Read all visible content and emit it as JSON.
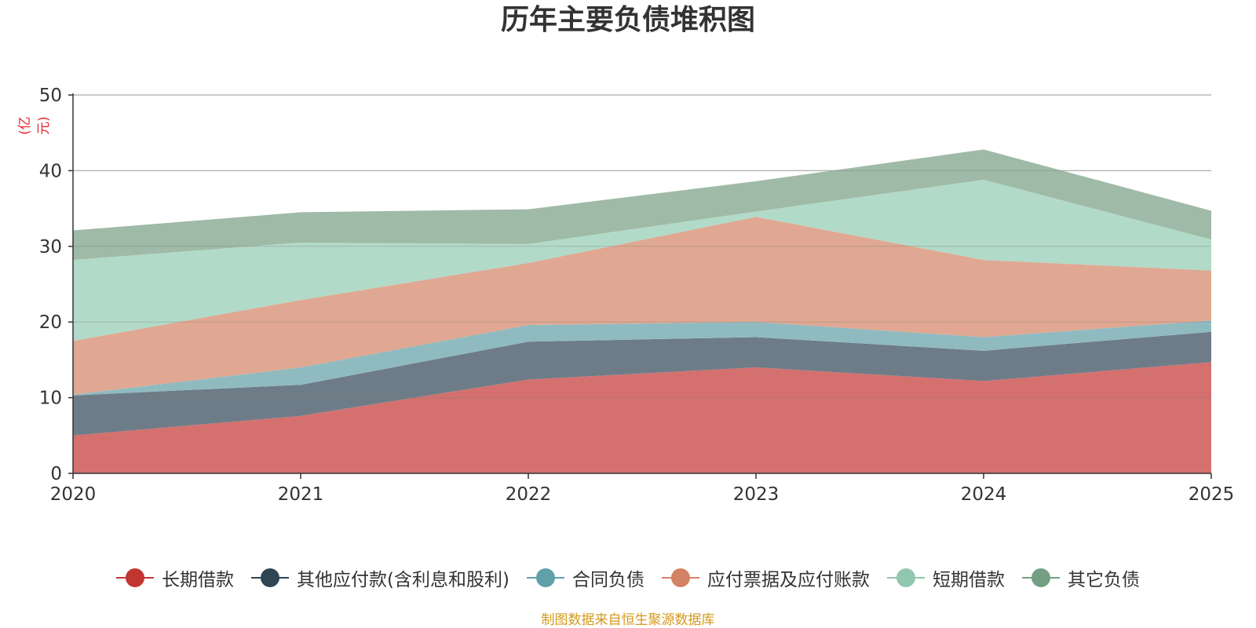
{
  "title": "历年主要负债堆积图",
  "unit": "(亿元)",
  "source": "制图数据来自恒生聚源数据库",
  "chart_data": {
    "type": "area",
    "stacked": true,
    "title": "历年主要负债堆积图",
    "ylabel": "(亿元)",
    "xlabel": "",
    "x": [
      "2020",
      "2021",
      "2022",
      "2023",
      "2024",
      "2025"
    ],
    "ylim": [
      0,
      50
    ],
    "yticks": [
      0,
      10,
      20,
      30,
      40,
      50
    ],
    "grid": true,
    "legend_position": "bottom",
    "series": [
      {
        "name": "长期借款",
        "color": "#c23531",
        "fill": "#d4716f",
        "values": [
          5.0,
          7.6,
          12.4,
          14.0,
          12.2,
          14.7
        ]
      },
      {
        "name": "其他应付款(含利息和股利)",
        "color": "#2f4554",
        "fill": "#6e7c88",
        "values": [
          5.3,
          4.1,
          5.0,
          4.0,
          4.0,
          4.0
        ]
      },
      {
        "name": "合同负债",
        "color": "#61a0a8",
        "fill": "#8fbbc0",
        "values": [
          0.1,
          2.3,
          2.2,
          2.0,
          1.8,
          1.5
        ]
      },
      {
        "name": "应付票据及应付账款",
        "color": "#d48265",
        "fill": "#e0a892",
        "values": [
          7.1,
          8.9,
          8.2,
          13.9,
          10.2,
          6.6
        ]
      },
      {
        "name": "短期借款",
        "color": "#91c7ae",
        "fill": "#b2dac8",
        "values": [
          10.7,
          7.6,
          2.5,
          0.7,
          10.6,
          4.1
        ]
      },
      {
        "name": "其它负债",
        "color": "#749f83",
        "fill": "#9fbaa6",
        "values": [
          3.9,
          4.0,
          4.6,
          4.0,
          4.0,
          3.8
        ]
      }
    ]
  }
}
